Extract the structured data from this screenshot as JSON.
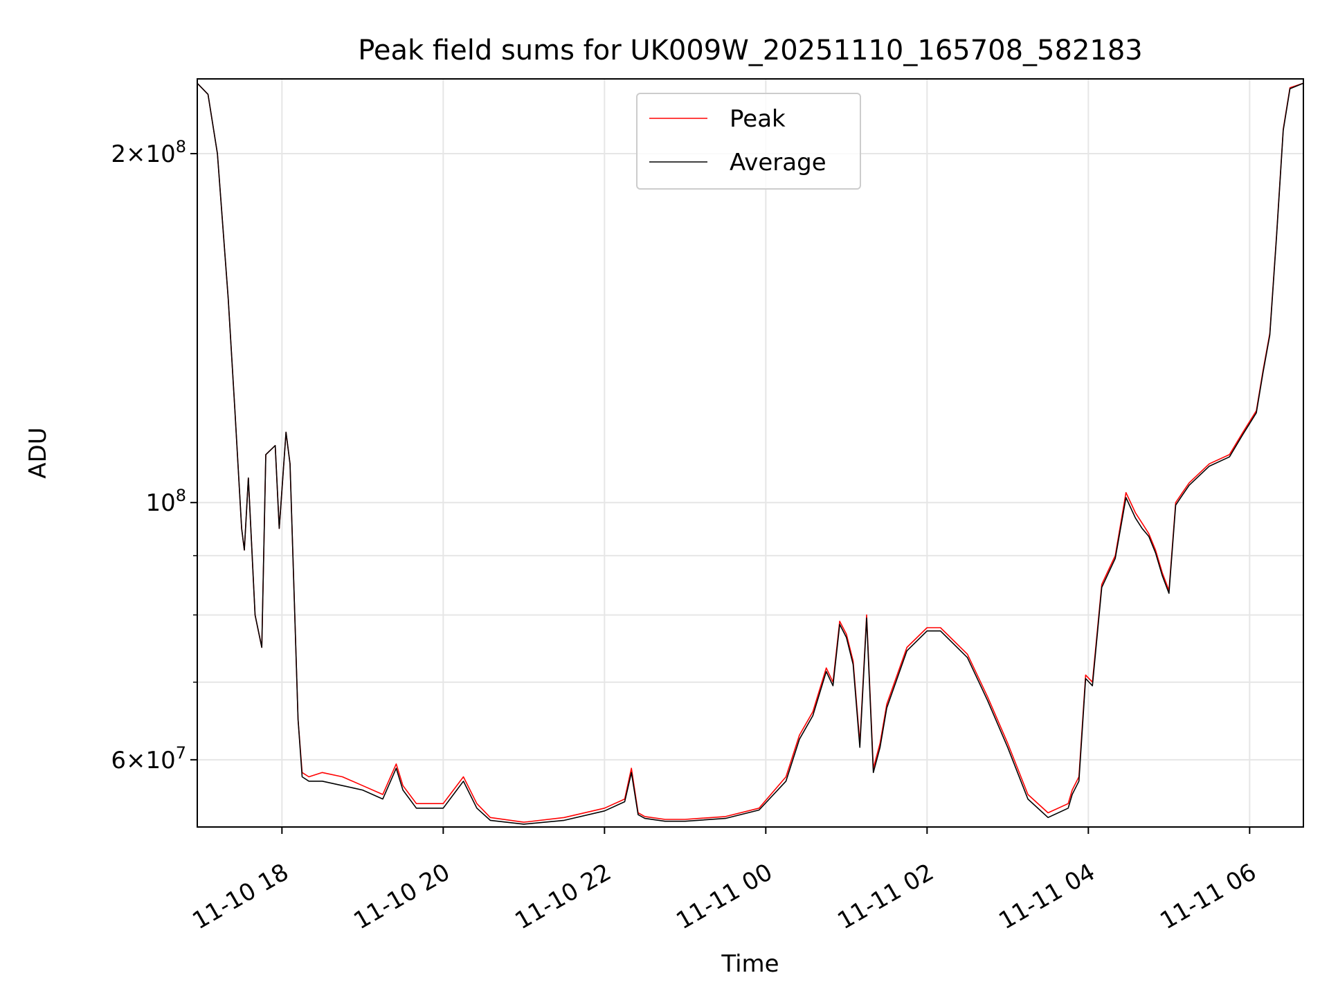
{
  "chart_data": {
    "type": "line",
    "title": "Peak field sums for UK009W_20251110_165708_582183",
    "xlabel": "Time",
    "ylabel": "ADU",
    "yscale": "log",
    "xlim": [
      "2025-11-10 16:57",
      "2025-11-11 06:40"
    ],
    "ylim": [
      52500000,
      232000000
    ],
    "grid": true,
    "legend": {
      "placement": "upper center",
      "entries": [
        "Peak",
        "Average"
      ]
    },
    "colors": {
      "Peak": "#ff0000",
      "Average": "#000000",
      "grid": "#e6e6e6"
    },
    "x_ticks": [
      {
        "value": "2025-11-10 18:00",
        "label": "11-10 18"
      },
      {
        "value": "2025-11-10 20:00",
        "label": "11-10 20"
      },
      {
        "value": "2025-11-10 22:00",
        "label": "11-10 22"
      },
      {
        "value": "2025-11-11 00:00",
        "label": "11-11 00"
      },
      {
        "value": "2025-11-11 02:00",
        "label": "11-11 02"
      },
      {
        "value": "2025-11-11 04:00",
        "label": "11-11 04"
      },
      {
        "value": "2025-11-11 06:00",
        "label": "11-11 06"
      }
    ],
    "y_major_ticks": [
      {
        "value": 60000000,
        "mantissa": "6",
        "exponent": "7"
      },
      {
        "value": 100000000,
        "mantissa": "",
        "exponent": "8"
      },
      {
        "value": 200000000,
        "mantissa": "2",
        "exponent": "8"
      }
    ],
    "y_minor_ticks": [
      70000000,
      80000000,
      90000000
    ],
    "x": [
      "2025-11-10 16:57",
      "2025-11-10 17:05",
      "2025-11-10 17:12",
      "2025-11-10 17:20",
      "2025-11-10 17:25",
      "2025-11-10 17:30",
      "2025-11-10 17:32",
      "2025-11-10 17:35",
      "2025-11-10 17:40",
      "2025-11-10 17:45",
      "2025-11-10 17:48",
      "2025-11-10 17:55",
      "2025-11-10 17:58",
      "2025-11-10 18:03",
      "2025-11-10 18:06",
      "2025-11-10 18:12",
      "2025-11-10 18:15",
      "2025-11-10 18:20",
      "2025-11-10 18:30",
      "2025-11-10 18:45",
      "2025-11-10 19:00",
      "2025-11-10 19:15",
      "2025-11-10 19:25",
      "2025-11-10 19:30",
      "2025-11-10 19:40",
      "2025-11-10 20:00",
      "2025-11-10 20:15",
      "2025-11-10 20:25",
      "2025-11-10 20:35",
      "2025-11-10 21:00",
      "2025-11-10 21:30",
      "2025-11-10 22:00",
      "2025-11-10 22:15",
      "2025-11-10 22:20",
      "2025-11-10 22:25",
      "2025-11-10 22:30",
      "2025-11-10 22:45",
      "2025-11-10 23:00",
      "2025-11-10 23:30",
      "2025-11-10 23:55",
      "2025-11-11 00:15",
      "2025-11-11 00:25",
      "2025-11-11 00:35",
      "2025-11-11 00:45",
      "2025-11-11 00:50",
      "2025-11-11 00:55",
      "2025-11-11 01:00",
      "2025-11-11 01:05",
      "2025-11-11 01:10",
      "2025-11-11 01:15",
      "2025-11-11 01:20",
      "2025-11-11 01:25",
      "2025-11-11 01:30",
      "2025-11-11 01:45",
      "2025-11-11 02:00",
      "2025-11-11 02:10",
      "2025-11-11 02:30",
      "2025-11-11 02:45",
      "2025-11-11 03:00",
      "2025-11-11 03:15",
      "2025-11-11 03:30",
      "2025-11-11 03:45",
      "2025-11-11 03:48",
      "2025-11-11 03:53",
      "2025-11-11 03:58",
      "2025-11-11 04:03",
      "2025-11-11 04:10",
      "2025-11-11 04:20",
      "2025-11-11 04:28",
      "2025-11-11 04:35",
      "2025-11-11 04:40",
      "2025-11-11 04:45",
      "2025-11-11 04:50",
      "2025-11-11 04:55",
      "2025-11-11 05:00",
      "2025-11-11 05:05",
      "2025-11-11 05:10",
      "2025-11-11 05:15",
      "2025-11-11 05:30",
      "2025-11-11 05:45",
      "2025-11-11 05:55",
      "2025-11-11 06:05",
      "2025-11-11 06:10",
      "2025-11-11 06:15",
      "2025-11-11 06:20",
      "2025-11-11 06:25",
      "2025-11-11 06:30",
      "2025-11-11 06:40"
    ],
    "series": [
      {
        "name": "Peak",
        "color": "#ff0000",
        "values": [
          230000000,
          225000000,
          200000000,
          150000000,
          120000000,
          95000000,
          91000000,
          105000000,
          80000000,
          75000000,
          110000000,
          112000000,
          95000000,
          115000000,
          108000000,
          65000000,
          58500000,
          58000000,
          58500000,
          58000000,
          57000000,
          56000000,
          59500000,
          57000000,
          55000000,
          55000000,
          58000000,
          55000000,
          53500000,
          53000000,
          53500000,
          54500000,
          55500000,
          59000000,
          54000000,
          53600000,
          53300000,
          53300000,
          53600000,
          54500000,
          58000000,
          63000000,
          66000000,
          72000000,
          70000000,
          79000000,
          77000000,
          73000000,
          62000000,
          80000000,
          59000000,
          62000000,
          67000000,
          75000000,
          78000000,
          78000000,
          74000000,
          68000000,
          62000000,
          56000000,
          54000000,
          55000000,
          56500000,
          58000000,
          71000000,
          70000000,
          85000000,
          90000000,
          102000000,
          98000000,
          96000000,
          94000000,
          91000000,
          87000000,
          84000000,
          100000000,
          102000000,
          104000000,
          108000000,
          110000000,
          115000000,
          120000000,
          130000000,
          140000000,
          170000000,
          210000000,
          228000000,
          230000000
        ]
      },
      {
        "name": "Average",
        "color": "#000000",
        "values": [
          230000000,
          225000000,
          200000000,
          150000000,
          120000000,
          95000000,
          91000000,
          105000000,
          80000000,
          75000000,
          110000000,
          112000000,
          95000000,
          115000000,
          108000000,
          65000000,
          58000000,
          57500000,
          57500000,
          57000000,
          56500000,
          55500000,
          59000000,
          56500000,
          54500000,
          54500000,
          57500000,
          54500000,
          53200000,
          52800000,
          53200000,
          54200000,
          55200000,
          58500000,
          53800000,
          53400000,
          53100000,
          53100000,
          53400000,
          54300000,
          57500000,
          62500000,
          65500000,
          71500000,
          69500000,
          78500000,
          76500000,
          72500000,
          61500000,
          79500000,
          58500000,
          61500000,
          66500000,
          74500000,
          77500000,
          77500000,
          73500000,
          67500000,
          61500000,
          55500000,
          53500000,
          54500000,
          56000000,
          57500000,
          70500000,
          69500000,
          84500000,
          89500000,
          101000000,
          97000000,
          95000000,
          93500000,
          90500000,
          86500000,
          83500000,
          99500000,
          101500000,
          103500000,
          107500000,
          109500000,
          114500000,
          119500000,
          129500000,
          139500000,
          169500000,
          209500000,
          227500000,
          230000000
        ]
      }
    ]
  }
}
